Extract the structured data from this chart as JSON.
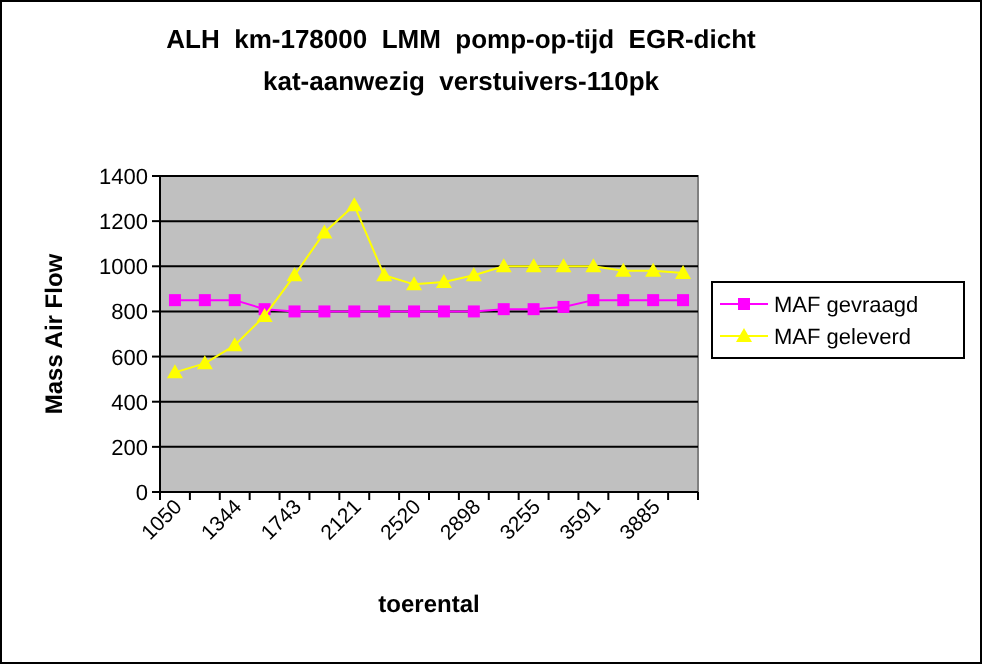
{
  "chart_data": {
    "type": "line",
    "title": "ALH km-178000 LMM pomp-op-tijd EGR-dicht kat-aanwezig verstuivers-110pk",
    "xlabel": "toerental",
    "ylabel": "Mass Air Flow",
    "categories": [
      "1050",
      null,
      "1344",
      null,
      "1743",
      null,
      "2121",
      null,
      "2520",
      null,
      "2898",
      null,
      "3255",
      null,
      "3591",
      null,
      "3885",
      null
    ],
    "series": [
      {
        "name": "MAF gevraagd",
        "color": "#ff00ff",
        "marker": "square",
        "values": [
          850,
          850,
          850,
          810,
          800,
          800,
          800,
          800,
          800,
          800,
          800,
          810,
          810,
          820,
          850,
          850,
          850,
          850
        ]
      },
      {
        "name": "MAF geleverd",
        "color": "#ffff00",
        "marker": "triangle",
        "values": [
          530,
          570,
          650,
          780,
          960,
          1150,
          1270,
          960,
          920,
          930,
          960,
          1000,
          1000,
          1000,
          1000,
          980,
          980,
          970
        ]
      }
    ],
    "ylim": [
      0,
      1400
    ],
    "yticks": [
      0,
      200,
      400,
      600,
      800,
      1000,
      1200,
      1400
    ],
    "grid": "y",
    "legend": "right"
  }
}
